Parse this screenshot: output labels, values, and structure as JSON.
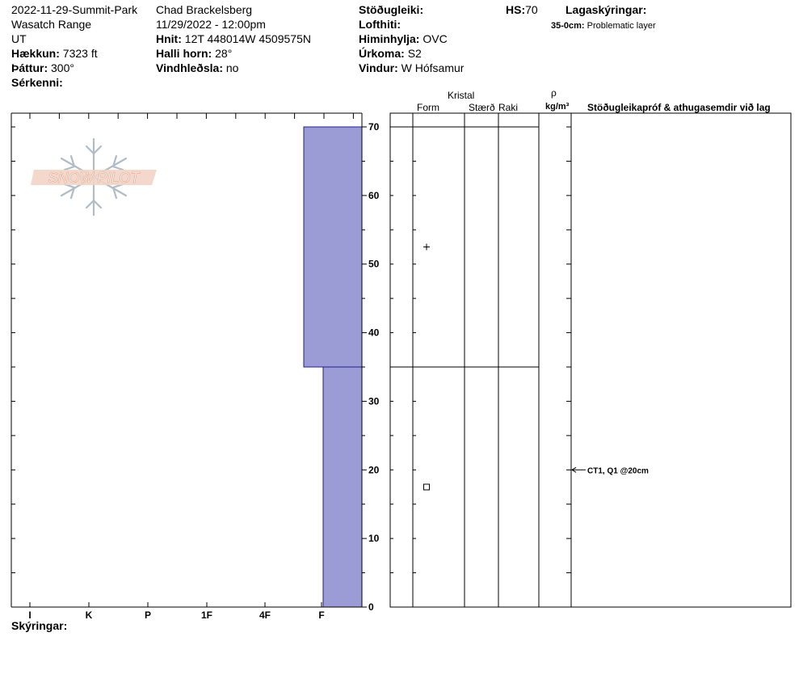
{
  "header": {
    "col1": [
      "2022-11-29-Summit-Park",
      "Wasatch Range",
      "UT"
    ],
    "elevation_label": "Hækkun:",
    "elevation_value": "7323 ft",
    "aspect_label": "Þáttur:",
    "aspect_value": "300°",
    "features_label": "Sérkenni:",
    "observer": "Chad Brackelsberg",
    "datetime": "11/29/2022 - 12:00pm",
    "coords_label": "Hnit:",
    "coords_value": "12T 448014W 4509575N",
    "slope_label": "Halli horn:",
    "slope_value": "28°",
    "windload_label": "Vindhleðsla:",
    "windload_value": "no",
    "stability_label": "Stöðugleiki:",
    "airtemp_label": "Lofthiti:",
    "sky_label": "Himinhylja:",
    "sky_value": "OVC",
    "precip_label": "Úrkoma:",
    "precip_value": "S2",
    "wind_label": "Vindur:",
    "wind_value": "W Hófsamur",
    "hs_label": "HS:",
    "hs_value": "70",
    "legend_label": "Lagaskýringar:",
    "legend_range": "35-0cm:",
    "legend_text": "Problematic layer"
  },
  "footer": {
    "notes_label": "Skýringar:"
  },
  "watermark": {
    "text": "SNOW PILOT"
  },
  "table": {
    "crystal_label": "Kristal",
    "form_label": "Form",
    "size_label": "Stærð",
    "moisture_label": "Raki",
    "density_symbol": "ρ",
    "density_unit": "kg/m³",
    "tests_label": "Stöðugleikapróf & athugasemdir við lag",
    "form_symbols": [
      {
        "depth": 52.5,
        "symbol": "plus"
      },
      {
        "depth": 17.5,
        "symbol": "square"
      }
    ],
    "test_annotations": [
      {
        "depth": 20,
        "text": "CT1, Q1 @20cm"
      }
    ]
  },
  "chart_data": {
    "type": "bar",
    "orientation": "horizontal",
    "x_categories": [
      "I",
      "K",
      "P",
      "1F",
      "4F",
      "F"
    ],
    "y_ticks": [
      0,
      10,
      20,
      30,
      40,
      50,
      60,
      70
    ],
    "ylim": [
      0,
      70
    ],
    "total_height": 70,
    "layer_boundaries": [
      70,
      35,
      0
    ],
    "layers": [
      {
        "top": 70,
        "bottom": 35,
        "hardness": "F-"
      },
      {
        "top": 35,
        "bottom": 0,
        "hardness": "F"
      }
    ],
    "colors": {
      "bar_fill": "#9b9bd6",
      "bar_stroke": "#1f1f8f",
      "line": "#000000"
    }
  }
}
